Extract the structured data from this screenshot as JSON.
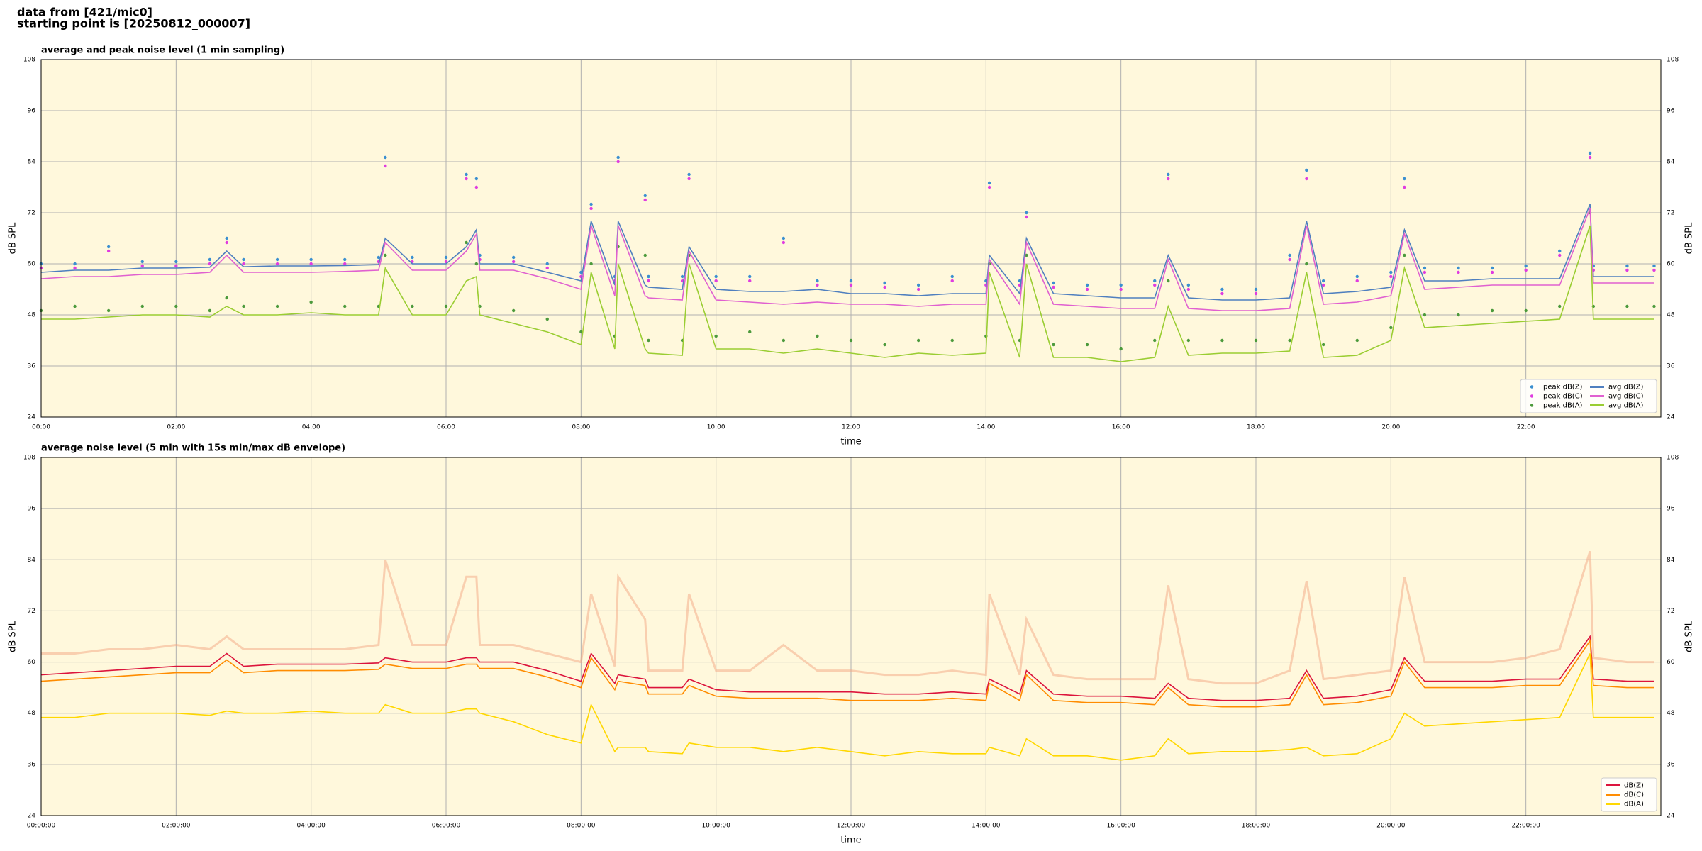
{
  "header": {
    "lines": [
      "data from [421/mic0]",
      "starting point is [20250812_000007]"
    ]
  },
  "chart_data": [
    {
      "type": "line",
      "title": "average and peak noise level (1 min sampling)",
      "xlabel": "time",
      "ylabel": "dB SPL",
      "xlim": [
        0,
        24
      ],
      "ylim": [
        24,
        108
      ],
      "yticks": [
        24,
        36,
        48,
        60,
        72,
        84,
        96,
        108
      ],
      "xticks": [
        {
          "value": 0,
          "label": "00:00"
        },
        {
          "value": 2,
          "label": "02:00"
        },
        {
          "value": 4,
          "label": "04:00"
        },
        {
          "value": 6,
          "label": "06:00"
        },
        {
          "value": 8,
          "label": "08:00"
        },
        {
          "value": 10,
          "label": "10:00"
        },
        {
          "value": 12,
          "label": "12:00"
        },
        {
          "value": 14,
          "label": "14:00"
        },
        {
          "value": 16,
          "label": "16:00"
        },
        {
          "value": 18,
          "label": "18:00"
        },
        {
          "value": 20,
          "label": "20:00"
        },
        {
          "value": 22,
          "label": "22:00"
        }
      ],
      "grid": true,
      "legend": "lower right",
      "legend_columns": 2,
      "background": "#fff8dc",
      "x": [
        0,
        0.5,
        1,
        1.5,
        2,
        2.5,
        2.75,
        3,
        3.5,
        4,
        4.5,
        5,
        5.1,
        5.5,
        6,
        6.3,
        6.45,
        6.5,
        7,
        7.5,
        8,
        8.15,
        8.5,
        8.55,
        8.95,
        9,
        9.5,
        9.6,
        10,
        10.5,
        11,
        11.5,
        12,
        12.5,
        13,
        13.5,
        14,
        14.05,
        14.5,
        14.6,
        15,
        15.5,
        16,
        16.5,
        16.7,
        17,
        17.5,
        18,
        18.5,
        18.75,
        19,
        19.5,
        20,
        20.2,
        20.5,
        21,
        21.5,
        22,
        22.5,
        22.95,
        23,
        23.5,
        23.9
      ],
      "series": [
        {
          "name": "peak dB(Z)",
          "type": "scatter",
          "color": "#3a8fd0",
          "values": [
            60,
            60,
            64,
            60.5,
            60.5,
            61,
            66,
            61,
            61,
            61,
            61,
            61.5,
            85,
            61.5,
            61.5,
            81,
            80,
            62,
            61.5,
            60,
            58,
            74,
            57,
            85,
            76,
            57,
            57,
            81,
            57,
            57,
            66,
            56,
            56,
            55.5,
            55,
            57,
            56,
            79,
            56,
            72,
            55.5,
            55,
            55,
            56,
            81,
            55,
            54,
            54,
            62,
            82,
            56,
            57,
            58,
            80,
            59,
            59,
            59,
            59.5,
            63,
            86,
            59.5,
            59.5,
            59.5
          ]
        },
        {
          "name": "peak dB(C)",
          "type": "scatter",
          "color": "#e03ce0",
          "values": [
            59,
            59,
            63,
            59.5,
            59.5,
            60,
            65,
            60,
            60,
            60,
            60,
            60.5,
            83,
            60.5,
            60.5,
            80,
            78,
            61,
            60.5,
            59,
            57,
            73,
            56,
            84,
            75,
            56,
            56,
            80,
            56,
            56,
            65,
            55,
            55,
            54.5,
            54,
            56,
            55,
            78,
            55,
            71,
            54.5,
            54,
            54,
            55,
            80,
            54,
            53,
            53,
            61,
            80,
            55,
            56,
            57,
            78,
            58,
            58,
            58,
            58.5,
            62,
            85,
            58.5,
            58.5,
            58.5
          ]
        },
        {
          "name": "peak dB(A)",
          "type": "scatter",
          "color": "#4c9a3c",
          "values": [
            49,
            50,
            49,
            50,
            50,
            49,
            52,
            50,
            50,
            51,
            50,
            50,
            62,
            50,
            50,
            65,
            60,
            50,
            49,
            47,
            44,
            60,
            43,
            64,
            62,
            42,
            42,
            62,
            43,
            44,
            42,
            43,
            42,
            41,
            42,
            42,
            43,
            60,
            42,
            62,
            41,
            41,
            40,
            42,
            56,
            42,
            42,
            42,
            42,
            60,
            41,
            42,
            45,
            62,
            48,
            48,
            49,
            49,
            50,
            72,
            50,
            50,
            50
          ]
        },
        {
          "name": "avg dB(Z)",
          "type": "line",
          "color": "#4f7fbf",
          "values": [
            58,
            58.5,
            58.5,
            59,
            59,
            59.2,
            63,
            59.3,
            59.5,
            59.5,
            59.6,
            59.8,
            66,
            60,
            60,
            64,
            68,
            60,
            60,
            58,
            56,
            70,
            55,
            70,
            55,
            54.5,
            54,
            64,
            54,
            53.5,
            53.5,
            54,
            53,
            53,
            52.5,
            53,
            53,
            62,
            53,
            66,
            53,
            52.5,
            52,
            52,
            62,
            52,
            51.5,
            51.5,
            52,
            70,
            53,
            53.5,
            54.5,
            68,
            56,
            56,
            56.5,
            56.5,
            56.5,
            74,
            57,
            57,
            57
          ]
        },
        {
          "name": "avg dB(C)",
          "type": "line",
          "color": "#e060d0",
          "values": [
            56.5,
            57,
            57,
            57.5,
            57.5,
            58,
            62,
            58,
            58,
            58,
            58.2,
            58.5,
            65,
            58.5,
            58.5,
            63,
            67,
            58.5,
            58.5,
            56.5,
            54,
            69,
            52.5,
            69,
            52.5,
            52,
            51.5,
            63,
            51.5,
            51,
            50.5,
            51,
            50.5,
            50.5,
            50,
            50.5,
            50.5,
            61,
            50.5,
            65,
            50.5,
            50,
            49.5,
            49.5,
            61,
            49.5,
            49,
            49,
            49.5,
            69,
            50.5,
            51,
            52.5,
            67,
            54,
            54.5,
            55,
            55,
            55,
            73,
            55.5,
            55.5,
            55.5
          ]
        },
        {
          "name": "avg dB(A)",
          "type": "line",
          "color": "#9acd32",
          "values": [
            47,
            47,
            47.5,
            48,
            48,
            47.5,
            50,
            48,
            48,
            48.5,
            48,
            48,
            59,
            48,
            48,
            56,
            57,
            48,
            46,
            44,
            41,
            58,
            40,
            60,
            40,
            39,
            38.5,
            60,
            40,
            40,
            39,
            40,
            39,
            38,
            39,
            38.5,
            39,
            58,
            38,
            60,
            38,
            38,
            37,
            38,
            50,
            38.5,
            39,
            39,
            39.5,
            58,
            38,
            38.5,
            42,
            59,
            45,
            45.5,
            46,
            46.5,
            47,
            69,
            47,
            47,
            47
          ]
        }
      ]
    },
    {
      "type": "line",
      "title": "average noise level (5 min with 15s min/max dB envelope)",
      "xlabel": "time",
      "ylabel": "dB SPL",
      "xlim": [
        0,
        24
      ],
      "ylim": [
        24,
        108
      ],
      "yticks": [
        24,
        36,
        48,
        60,
        72,
        84,
        96,
        108
      ],
      "xticks": [
        {
          "value": 0,
          "label": "00:00:00"
        },
        {
          "value": 2,
          "label": "02:00:00"
        },
        {
          "value": 4,
          "label": "04:00:00"
        },
        {
          "value": 6,
          "label": "06:00:00"
        },
        {
          "value": 8,
          "label": "08:00:00"
        },
        {
          "value": 10,
          "label": "10:00:00"
        },
        {
          "value": 12,
          "label": "12:00:00"
        },
        {
          "value": 14,
          "label": "14:00:00"
        },
        {
          "value": 16,
          "label": "16:00:00"
        },
        {
          "value": 18,
          "label": "18:00:00"
        },
        {
          "value": 20,
          "label": "20:00:00"
        },
        {
          "value": 22,
          "label": "22:00:00"
        }
      ],
      "grid": true,
      "legend": "lower right",
      "legend_columns": 1,
      "background": "#fff8dc",
      "x": [
        0,
        0.5,
        1,
        1.5,
        2,
        2.5,
        2.75,
        3,
        3.5,
        4,
        4.5,
        5,
        5.1,
        5.5,
        6,
        6.3,
        6.45,
        6.5,
        7,
        7.5,
        8,
        8.15,
        8.5,
        8.55,
        8.95,
        9,
        9.5,
        9.6,
        10,
        10.5,
        11,
        11.5,
        12,
        12.5,
        13,
        13.5,
        14,
        14.05,
        14.5,
        14.6,
        15,
        15.5,
        16,
        16.5,
        16.7,
        17,
        17.5,
        18,
        18.5,
        18.75,
        19,
        19.5,
        20,
        20.2,
        20.5,
        21,
        21.5,
        22,
        22.5,
        22.95,
        23,
        23.5,
        23.9
      ],
      "series": [
        {
          "type": "envelope",
          "color": "#f4a582",
          "values": [
            62,
            62,
            63,
            63,
            64,
            63,
            66,
            63,
            63,
            63,
            63,
            64,
            84,
            64,
            64,
            80,
            80,
            64,
            64,
            62,
            60,
            76,
            59,
            80,
            70,
            58,
            58,
            76,
            58,
            58,
            64,
            58,
            58,
            57,
            57,
            58,
            57,
            76,
            57,
            70,
            57,
            56,
            56,
            56,
            78,
            56,
            55,
            55,
            58,
            79,
            56,
            57,
            58,
            80,
            60,
            60,
            60,
            61,
            63,
            86,
            61,
            60,
            60
          ]
        },
        {
          "name": "dB(Z)",
          "type": "line",
          "color": "#dc143c",
          "values": [
            57,
            57.5,
            58,
            58.5,
            59,
            59,
            62,
            59,
            59.5,
            59.5,
            59.5,
            59.8,
            61,
            60,
            60,
            61,
            61,
            60,
            60,
            58,
            55.5,
            62,
            55,
            57,
            56,
            54,
            54,
            56,
            53.5,
            53,
            53,
            53,
            53,
            52.5,
            52.5,
            53,
            52.5,
            56,
            52.5,
            58,
            52.5,
            52,
            52,
            51.5,
            55,
            51.5,
            51,
            51,
            51.5,
            58,
            51.5,
            52,
            53.5,
            61,
            55.5,
            55.5,
            55.5,
            56,
            56,
            66,
            56,
            55.5,
            55.5
          ]
        },
        {
          "name": "dB(C)",
          "type": "line",
          "color": "#ff8c00",
          "values": [
            55.5,
            56,
            56.5,
            57,
            57.5,
            57.5,
            60.5,
            57.5,
            58,
            58,
            58,
            58.3,
            59.5,
            58.5,
            58.5,
            59.5,
            59.5,
            58.5,
            58.5,
            56.5,
            54,
            61,
            53.5,
            55.5,
            54.5,
            52.5,
            52.5,
            54.5,
            52,
            51.5,
            51.5,
            51.5,
            51,
            51,
            51,
            51.5,
            51,
            55,
            51,
            57,
            51,
            50.5,
            50.5,
            50,
            54,
            50,
            49.5,
            49.5,
            50,
            57,
            50,
            50.5,
            52,
            60,
            54,
            54,
            54,
            54.5,
            54.5,
            65,
            54.5,
            54,
            54
          ]
        },
        {
          "name": "dB(A)",
          "type": "line",
          "color": "#ffd700",
          "values": [
            47,
            47,
            48,
            48,
            48,
            47.5,
            48.5,
            48,
            48,
            48.5,
            48,
            48,
            50,
            48,
            48,
            49,
            49,
            48,
            46,
            43,
            41,
            50,
            39,
            40,
            40,
            39,
            38.5,
            41,
            40,
            40,
            39,
            40,
            39,
            38,
            39,
            38.5,
            38.5,
            40,
            38,
            42,
            38,
            38,
            37,
            38,
            42,
            38.5,
            39,
            39,
            39.5,
            40,
            38,
            38.5,
            42,
            48,
            45,
            45.5,
            46,
            46.5,
            47,
            62,
            47,
            47,
            47
          ]
        }
      ]
    }
  ]
}
